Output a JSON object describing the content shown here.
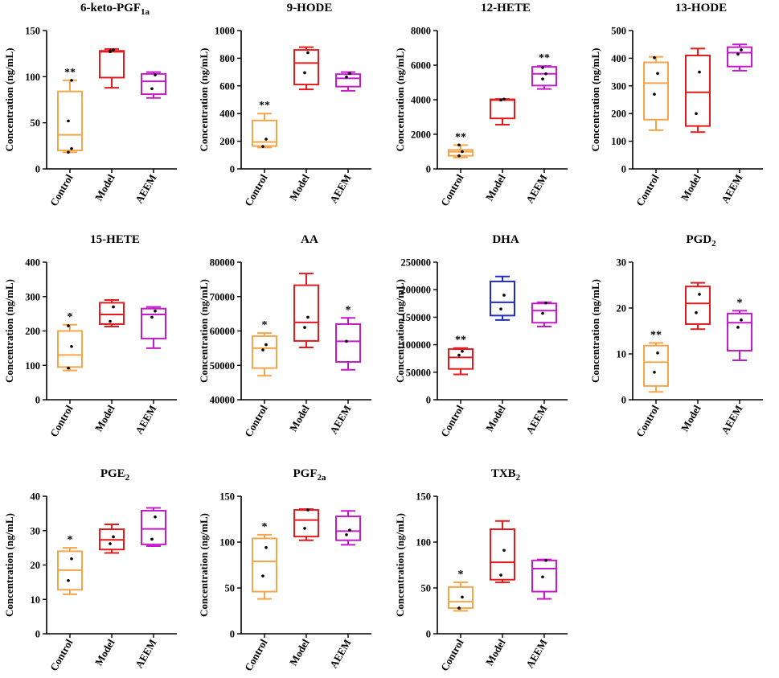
{
  "figure_title": "Box plots of eicosanoid concentrations",
  "colors": {
    "Control": "#F5A54A",
    "Model": "#E41A1C",
    "AEEM": "#C21BC9",
    "DHA_Model": "#1F2BD6"
  },
  "chart_data": [
    {
      "type": "box",
      "title": "6-keto-PGF",
      "title_sub": "1a",
      "ylabel": "Concentration (ng/mL)",
      "ylim": [
        0,
        150
      ],
      "yticks": [
        "0",
        "50",
        "100",
        "150"
      ],
      "categories": [
        "Control",
        "Model",
        "AEEM"
      ],
      "boxes": [
        {
          "name": "Control",
          "min": 18,
          "q1": 20,
          "median": 37,
          "q3": 84,
          "max": 96,
          "points": [
            18,
            22,
            52,
            96
          ],
          "sig": "**"
        },
        {
          "name": "Model",
          "min": 88,
          "q1": 99,
          "median": 127,
          "q3": 128,
          "max": 130,
          "points": [
            127,
            129,
            128
          ],
          "sig": ""
        },
        {
          "name": "AEEM",
          "min": 77,
          "q1": 81,
          "median": 95,
          "q3": 103,
          "max": 105,
          "points": [
            87,
            102
          ],
          "sig": ""
        }
      ]
    },
    {
      "type": "box",
      "title": "9-HODE",
      "title_sub": "",
      "ylabel": "Concentration (ng/mL)",
      "ylim": [
        0,
        1000
      ],
      "yticks": [
        "0",
        "200",
        "400",
        "600",
        "800",
        "1000"
      ],
      "categories": [
        "Control",
        "Model",
        "AEEM"
      ],
      "boxes": [
        {
          "name": "Control",
          "min": 155,
          "q1": 165,
          "median": 195,
          "q3": 350,
          "max": 400,
          "points": [
            162,
            215
          ],
          "sig": "**"
        },
        {
          "name": "Model",
          "min": 575,
          "q1": 610,
          "median": 765,
          "q3": 860,
          "max": 880,
          "points": [
            695,
            840
          ],
          "sig": ""
        },
        {
          "name": "AEEM",
          "min": 565,
          "q1": 595,
          "median": 655,
          "q3": 685,
          "max": 700,
          "points": [
            665,
            690
          ],
          "sig": ""
        }
      ]
    },
    {
      "type": "box",
      "title": "12-HETE",
      "title_sub": "",
      "ylabel": "Concentration (ng/mL)",
      "ylim": [
        0,
        8000
      ],
      "yticks": [
        "0",
        "2000",
        "4000",
        "6000",
        "8000"
      ],
      "categories": [
        "Control",
        "Model",
        "AEEM"
      ],
      "boxes": [
        {
          "name": "Control",
          "min": 660,
          "q1": 760,
          "median": 990,
          "q3": 1100,
          "max": 1380,
          "points": [
            760,
            1000,
            1380
          ],
          "sig": "**"
        },
        {
          "name": "Model",
          "min": 2560,
          "q1": 2920,
          "median": 3980,
          "q3": 4020,
          "max": 4040,
          "points": [
            3980,
            4030
          ],
          "sig": ""
        },
        {
          "name": "AEEM",
          "min": 4620,
          "q1": 4820,
          "median": 5500,
          "q3": 5900,
          "max": 5950,
          "points": [
            5200,
            5500,
            5860
          ],
          "sig": "**"
        }
      ]
    },
    {
      "type": "box",
      "title": "13-HODE",
      "title_sub": "",
      "ylabel": "Concentration (ng/mL)",
      "ylim": [
        0,
        500
      ],
      "yticks": [
        "0",
        "100",
        "200",
        "300",
        "400",
        "500"
      ],
      "categories": [
        "Control",
        "Model",
        "AEEM"
      ],
      "boxes": [
        {
          "name": "Control",
          "min": 140,
          "q1": 178,
          "median": 310,
          "q3": 385,
          "max": 405,
          "points": [
            270,
            345,
            402
          ],
          "sig": ""
        },
        {
          "name": "Model",
          "min": 133,
          "q1": 155,
          "median": 277,
          "q3": 410,
          "max": 435,
          "points": [
            200,
            350
          ],
          "sig": ""
        },
        {
          "name": "AEEM",
          "min": 355,
          "q1": 370,
          "median": 420,
          "q3": 440,
          "max": 450,
          "points": [
            415,
            430
          ],
          "sig": ""
        }
      ]
    },
    {
      "type": "box",
      "title": "15-HETE",
      "title_sub": "",
      "ylabel": "Concentration (ng/mL)",
      "ylim": [
        0,
        400
      ],
      "yticks": [
        "0",
        "100",
        "200",
        "300",
        "400"
      ],
      "categories": [
        "Control",
        "Model",
        "AEEM"
      ],
      "boxes": [
        {
          "name": "Control",
          "min": 85,
          "q1": 95,
          "median": 130,
          "q3": 200,
          "max": 218,
          "points": [
            92,
            155,
            215
          ],
          "sig": "*"
        },
        {
          "name": "Model",
          "min": 213,
          "q1": 220,
          "median": 248,
          "q3": 282,
          "max": 290,
          "points": [
            228,
            270
          ],
          "sig": ""
        },
        {
          "name": "AEEM",
          "min": 150,
          "q1": 178,
          "median": 248,
          "q3": 265,
          "max": 270,
          "points": [
            240,
            258
          ],
          "sig": ""
        }
      ]
    },
    {
      "type": "box",
      "title": "AA",
      "title_sub": "",
      "ylabel": "Concentration (ng/mL)",
      "ylim": [
        40000,
        80000
      ],
      "yticks": [
        "40000",
        "50000",
        "60000",
        "70000",
        "80000"
      ],
      "categories": [
        "Control",
        "Model",
        "AEEM"
      ],
      "boxes": [
        {
          "name": "Control",
          "min": 47000,
          "q1": 49200,
          "median": 55000,
          "q3": 58500,
          "max": 59400,
          "points": [
            54500,
            56000
          ],
          "sig": "*"
        },
        {
          "name": "Model",
          "min": 55200,
          "q1": 57100,
          "median": 62500,
          "q3": 73300,
          "max": 76700,
          "points": [
            61000,
            64000
          ],
          "sig": ""
        },
        {
          "name": "AEEM",
          "min": 48700,
          "q1": 51000,
          "median": 57000,
          "q3": 62000,
          "max": 63800,
          "points": [
            57000
          ],
          "sig": "*"
        }
      ]
    },
    {
      "type": "box",
      "title": "DHA",
      "title_sub": "",
      "ylabel": "Concentration (ng/mL)",
      "ylim": [
        0,
        250000
      ],
      "yticks": [
        "0",
        "50000",
        "100000",
        "150000",
        "200000",
        "250000"
      ],
      "categories": [
        "Control",
        "Model",
        "AEEM"
      ],
      "boxes": [
        {
          "name": "Control",
          "min": 46000,
          "q1": 56000,
          "median": 77000,
          "q3": 92000,
          "max": 94000,
          "points": [
            81000,
            88000
          ],
          "sig": "**"
        },
        {
          "name": "Model",
          "min": 145000,
          "q1": 153000,
          "median": 177000,
          "q3": 215000,
          "max": 224000,
          "points": [
            165000,
            190000
          ],
          "sig": ""
        },
        {
          "name": "AEEM",
          "min": 133000,
          "q1": 140000,
          "median": 162000,
          "q3": 175000,
          "max": 177000,
          "points": [
            157000,
            176000
          ],
          "sig": ""
        }
      ]
    },
    {
      "type": "box",
      "title": "PGD",
      "title_sub": "2",
      "ylabel": "Concentration (ng/mL)",
      "ylim": [
        0,
        30
      ],
      "yticks": [
        "0",
        "10",
        "20",
        "30"
      ],
      "categories": [
        "Control",
        "Model",
        "AEEM"
      ],
      "boxes": [
        {
          "name": "Control",
          "min": 1.7,
          "q1": 3,
          "median": 8.2,
          "q3": 11.8,
          "max": 12.4,
          "points": [
            6,
            10.2
          ],
          "sig": "**"
        },
        {
          "name": "Model",
          "min": 15.4,
          "q1": 16.5,
          "median": 21,
          "q3": 24.7,
          "max": 25.5,
          "points": [
            19,
            23
          ],
          "sig": ""
        },
        {
          "name": "AEEM",
          "min": 8.6,
          "q1": 10.7,
          "median": 16.8,
          "q3": 18.8,
          "max": 19.4,
          "points": [
            15.8,
            17.4
          ],
          "sig": "*"
        }
      ]
    },
    {
      "type": "box",
      "title": "PGE",
      "title_sub": "2",
      "ylabel": "Concentration (ng/mL)",
      "ylim": [
        0,
        40
      ],
      "yticks": [
        "0",
        "10",
        "20",
        "30",
        "40"
      ],
      "categories": [
        "Control",
        "Model",
        "AEEM"
      ],
      "boxes": [
        {
          "name": "Control",
          "min": 11.5,
          "q1": 12.8,
          "median": 18.5,
          "q3": 24,
          "max": 25,
          "points": [
            15.5,
            21.8
          ],
          "sig": "*"
        },
        {
          "name": "Model",
          "min": 23.5,
          "q1": 24.5,
          "median": 27.3,
          "q3": 30.4,
          "max": 31.8,
          "points": [
            26.2,
            28.2
          ],
          "sig": ""
        },
        {
          "name": "AEEM",
          "min": 25.5,
          "q1": 26,
          "median": 30.5,
          "q3": 35.8,
          "max": 36.6,
          "points": [
            27.5,
            34
          ],
          "sig": ""
        }
      ]
    },
    {
      "type": "box",
      "title": "PGF",
      "title_sub": "2a",
      "ylabel": "Concentration (ng/mL)",
      "ylim": [
        0,
        150
      ],
      "yticks": [
        "0",
        "50",
        "100",
        "150"
      ],
      "categories": [
        "Control",
        "Model",
        "AEEM"
      ],
      "boxes": [
        {
          "name": "Control",
          "min": 38,
          "q1": 46,
          "median": 79,
          "q3": 104,
          "max": 108,
          "points": [
            63,
            94
          ],
          "sig": "*"
        },
        {
          "name": "Model",
          "min": 102,
          "q1": 106,
          "median": 124,
          "q3": 135,
          "max": 136,
          "points": [
            115,
            135
          ],
          "sig": ""
        },
        {
          "name": "AEEM",
          "min": 97,
          "q1": 102,
          "median": 112,
          "q3": 128,
          "max": 134,
          "points": [
            108,
            113
          ],
          "sig": ""
        }
      ]
    },
    {
      "type": "box",
      "title": "TXB",
      "title_sub": "2",
      "ylabel": "Concentration (ng/mL)",
      "ylim": [
        0,
        150
      ],
      "yticks": [
        "0",
        "50",
        "100",
        "150"
      ],
      "categories": [
        "Control",
        "Model",
        "AEEM"
      ],
      "boxes": [
        {
          "name": "Control",
          "min": 25,
          "q1": 28,
          "median": 35,
          "q3": 51,
          "max": 56,
          "points": [
            28,
            40
          ],
          "sig": "*"
        },
        {
          "name": "Model",
          "min": 56,
          "q1": 59,
          "median": 78,
          "q3": 114,
          "max": 123,
          "points": [
            64,
            91
          ],
          "sig": ""
        },
        {
          "name": "AEEM",
          "min": 38,
          "q1": 46,
          "median": 71,
          "q3": 80,
          "max": 81,
          "points": [
            62,
            80
          ],
          "sig": ""
        }
      ]
    }
  ]
}
